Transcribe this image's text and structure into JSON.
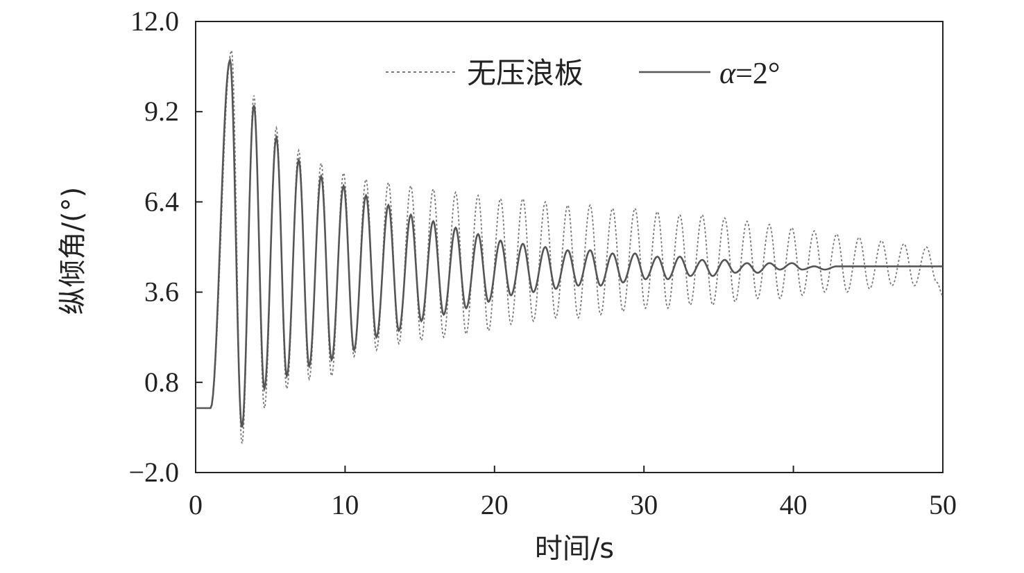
{
  "chart_data": {
    "type": "line",
    "title": "",
    "xlabel": "时间/s",
    "ylabel": "纵倾角/(°)",
    "xlim": [
      0,
      50
    ],
    "ylim": [
      -2.0,
      12.0
    ],
    "x_ticks": [
      "0",
      "10",
      "20",
      "30",
      "40",
      "50"
    ],
    "y_ticks": [
      "−2.0",
      "0.8",
      "3.6",
      "6.4",
      "9.2",
      "12.0"
    ],
    "grid": false,
    "legend_position": "top-right",
    "legend": {
      "entry1": "无压浪板",
      "entry2_symbol": "α",
      "entry2_value": "=2°"
    },
    "series": [
      {
        "name": "无压浪板",
        "style": "dotted",
        "color": "#777777",
        "x": [
          0,
          1.0,
          2.4,
          3.1,
          3.9,
          4.6,
          5.4,
          6.1,
          6.9,
          7.6,
          8.4,
          9.1,
          9.9,
          10.6,
          11.4,
          12.1,
          12.9,
          13.6,
          14.4,
          15.1,
          15.9,
          16.6,
          17.4,
          18.1,
          18.9,
          19.6,
          20.4,
          21.1,
          21.9,
          22.6,
          23.4,
          24.1,
          24.9,
          25.6,
          26.4,
          27.1,
          27.9,
          28.6,
          29.4,
          30.1,
          30.9,
          31.6,
          32.4,
          33.1,
          33.9,
          34.6,
          35.4,
          36.1,
          36.9,
          37.6,
          38.4,
          39.1,
          39.9,
          40.6,
          41.4,
          42.1,
          42.9,
          43.6,
          44.4,
          45.1,
          45.9,
          46.6,
          47.4,
          48.1,
          48.9,
          49.6,
          50.0
        ],
        "y": [
          0.0,
          0.0,
          11.1,
          -1.1,
          9.7,
          0.0,
          8.7,
          0.6,
          8.0,
          0.9,
          7.6,
          1.0,
          7.3,
          1.6,
          7.1,
          1.8,
          7.0,
          2.0,
          6.9,
          2.1,
          6.8,
          2.2,
          6.7,
          2.3,
          6.6,
          2.4,
          6.5,
          2.6,
          6.5,
          2.7,
          6.4,
          2.8,
          6.3,
          2.8,
          6.3,
          2.9,
          6.2,
          3.0,
          6.2,
          3.1,
          6.1,
          3.1,
          6.0,
          3.2,
          6.0,
          3.2,
          5.9,
          3.3,
          5.8,
          3.4,
          5.7,
          3.4,
          5.6,
          3.5,
          5.5,
          3.6,
          5.4,
          3.6,
          5.3,
          3.7,
          5.2,
          3.8,
          5.1,
          3.8,
          5.0,
          3.9,
          3.5
        ]
      },
      {
        "name": "α=2°",
        "style": "solid",
        "color": "#555555",
        "x": [
          0,
          1.0,
          2.3,
          3.1,
          3.9,
          4.6,
          5.4,
          6.1,
          6.9,
          7.6,
          8.4,
          9.1,
          9.9,
          10.6,
          11.4,
          12.1,
          12.9,
          13.6,
          14.4,
          15.1,
          15.9,
          16.6,
          17.4,
          18.1,
          18.9,
          19.6,
          20.4,
          21.1,
          21.9,
          22.6,
          23.4,
          24.1,
          24.9,
          25.6,
          26.4,
          27.1,
          27.9,
          28.6,
          29.4,
          30.1,
          30.9,
          31.6,
          32.4,
          33.1,
          33.9,
          34.6,
          35.4,
          36.1,
          36.9,
          37.6,
          38.4,
          39.1,
          39.9,
          40.6,
          41.4,
          42.1,
          42.9,
          43.6,
          44.4,
          45.1,
          45.9,
          46.6,
          47.4,
          48.1,
          48.9,
          49.6,
          50.0
        ],
        "y": [
          0.0,
          0.0,
          10.8,
          -0.6,
          9.4,
          0.6,
          8.4,
          1.0,
          7.7,
          1.3,
          7.2,
          1.5,
          6.9,
          1.8,
          6.6,
          2.2,
          6.3,
          2.4,
          6.0,
          2.7,
          5.8,
          2.9,
          5.6,
          3.1,
          5.4,
          3.3,
          5.2,
          3.5,
          5.1,
          3.6,
          5.0,
          3.7,
          4.9,
          3.8,
          4.9,
          3.8,
          4.8,
          3.9,
          4.8,
          4.0,
          4.7,
          4.0,
          4.7,
          4.1,
          4.6,
          4.1,
          4.6,
          4.2,
          4.5,
          4.2,
          4.5,
          4.3,
          4.5,
          4.3,
          4.4,
          4.3,
          4.4,
          4.4,
          4.4,
          4.4,
          4.4,
          4.4,
          4.4,
          4.4,
          4.4,
          4.4,
          4.4
        ]
      }
    ]
  }
}
